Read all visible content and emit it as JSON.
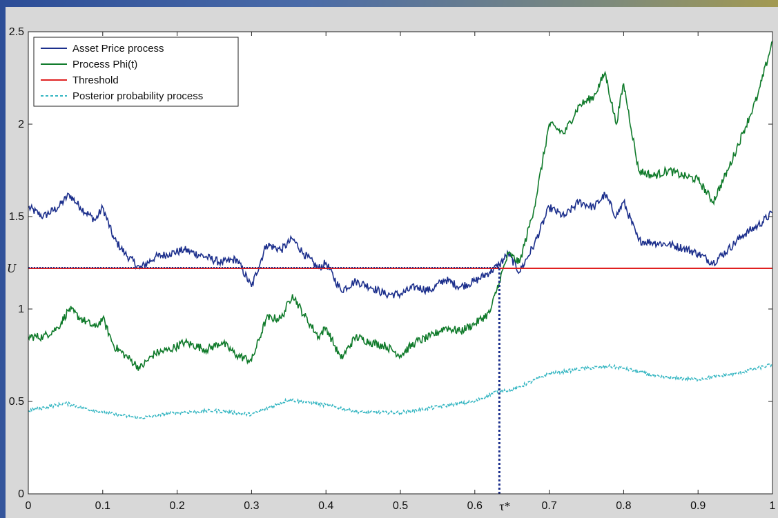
{
  "chart_data": {
    "type": "line",
    "xlim": [
      0,
      1
    ],
    "ylim": [
      0,
      2.5
    ],
    "xticks": [
      0,
      0.1,
      0.2,
      0.3,
      0.4,
      0.5,
      0.6,
      0.7,
      0.8,
      0.9,
      1
    ],
    "xtick_labels": [
      "0",
      "0.1",
      "0.2",
      "0.3",
      "0.4",
      "0.5",
      "0.6",
      "0.7",
      "0.8",
      "0.9",
      "1"
    ],
    "yticks": [
      0,
      0.5,
      1,
      1.5,
      2,
      2.5
    ],
    "ytick_labels": [
      "0",
      "0.5",
      "1",
      "1.5",
      "2",
      "2.5"
    ],
    "legend_position": "top-left",
    "threshold": {
      "y": 1.22,
      "label": "U"
    },
    "stopping_time": {
      "x": 0.633,
      "label": "τ*"
    },
    "series": [
      {
        "name": "Asset Price process",
        "color": "#1c2f8c",
        "style": "solid",
        "x": [
          0,
          0.02,
          0.04,
          0.055,
          0.07,
          0.09,
          0.1,
          0.115,
          0.13,
          0.15,
          0.17,
          0.19,
          0.21,
          0.24,
          0.26,
          0.28,
          0.3,
          0.32,
          0.34,
          0.355,
          0.37,
          0.39,
          0.4,
          0.42,
          0.44,
          0.46,
          0.48,
          0.5,
          0.52,
          0.54,
          0.56,
          0.58,
          0.6,
          0.62,
          0.633,
          0.645,
          0.66,
          0.68,
          0.7,
          0.72,
          0.74,
          0.76,
          0.775,
          0.79,
          0.8,
          0.82,
          0.84,
          0.86,
          0.88,
          0.9,
          0.92,
          0.94,
          0.96,
          0.98,
          1
        ],
        "y": [
          1.55,
          1.5,
          1.55,
          1.62,
          1.55,
          1.48,
          1.55,
          1.38,
          1.3,
          1.22,
          1.28,
          1.3,
          1.32,
          1.28,
          1.25,
          1.27,
          1.12,
          1.35,
          1.32,
          1.38,
          1.3,
          1.22,
          1.25,
          1.1,
          1.15,
          1.12,
          1.08,
          1.08,
          1.12,
          1.1,
          1.16,
          1.12,
          1.15,
          1.2,
          1.24,
          1.3,
          1.2,
          1.35,
          1.55,
          1.5,
          1.58,
          1.55,
          1.62,
          1.5,
          1.58,
          1.37,
          1.36,
          1.35,
          1.33,
          1.3,
          1.25,
          1.32,
          1.4,
          1.45,
          1.52
        ]
      },
      {
        "name": "Process Phi(t)",
        "color": "#0f7a2a",
        "style": "solid",
        "x": [
          0,
          0.02,
          0.04,
          0.055,
          0.07,
          0.09,
          0.1,
          0.115,
          0.13,
          0.15,
          0.17,
          0.19,
          0.21,
          0.24,
          0.26,
          0.28,
          0.3,
          0.32,
          0.34,
          0.355,
          0.37,
          0.39,
          0.4,
          0.42,
          0.44,
          0.46,
          0.48,
          0.5,
          0.52,
          0.54,
          0.56,
          0.58,
          0.6,
          0.62,
          0.633,
          0.645,
          0.66,
          0.68,
          0.7,
          0.72,
          0.74,
          0.76,
          0.775,
          0.79,
          0.8,
          0.82,
          0.84,
          0.86,
          0.88,
          0.9,
          0.92,
          0.94,
          0.96,
          0.98,
          1
        ],
        "y": [
          0.85,
          0.85,
          0.9,
          1.0,
          0.95,
          0.9,
          0.95,
          0.8,
          0.75,
          0.68,
          0.76,
          0.78,
          0.82,
          0.78,
          0.82,
          0.75,
          0.72,
          0.95,
          0.95,
          1.08,
          0.97,
          0.85,
          0.9,
          0.73,
          0.85,
          0.82,
          0.8,
          0.75,
          0.82,
          0.85,
          0.9,
          0.88,
          0.92,
          0.98,
          1.15,
          1.3,
          1.25,
          1.55,
          2.0,
          1.95,
          2.1,
          2.15,
          2.28,
          2.0,
          2.22,
          1.75,
          1.72,
          1.75,
          1.72,
          1.7,
          1.58,
          1.75,
          1.95,
          2.15,
          2.45
        ]
      },
      {
        "name": "Threshold",
        "color": "#e02020",
        "style": "solid",
        "x": [
          0,
          1
        ],
        "y": [
          1.22,
          1.22
        ]
      },
      {
        "name": "Posterior probability process",
        "color": "#35b6c2",
        "style": "dashed",
        "x": [
          0,
          0.05,
          0.1,
          0.15,
          0.2,
          0.25,
          0.3,
          0.35,
          0.4,
          0.45,
          0.5,
          0.55,
          0.6,
          0.633,
          0.65,
          0.7,
          0.75,
          0.78,
          0.8,
          0.85,
          0.9,
          0.95,
          1
        ],
        "y": [
          0.45,
          0.49,
          0.44,
          0.41,
          0.44,
          0.45,
          0.43,
          0.51,
          0.48,
          0.44,
          0.44,
          0.47,
          0.5,
          0.56,
          0.56,
          0.65,
          0.68,
          0.69,
          0.68,
          0.63,
          0.62,
          0.65,
          0.7
        ]
      }
    ]
  }
}
